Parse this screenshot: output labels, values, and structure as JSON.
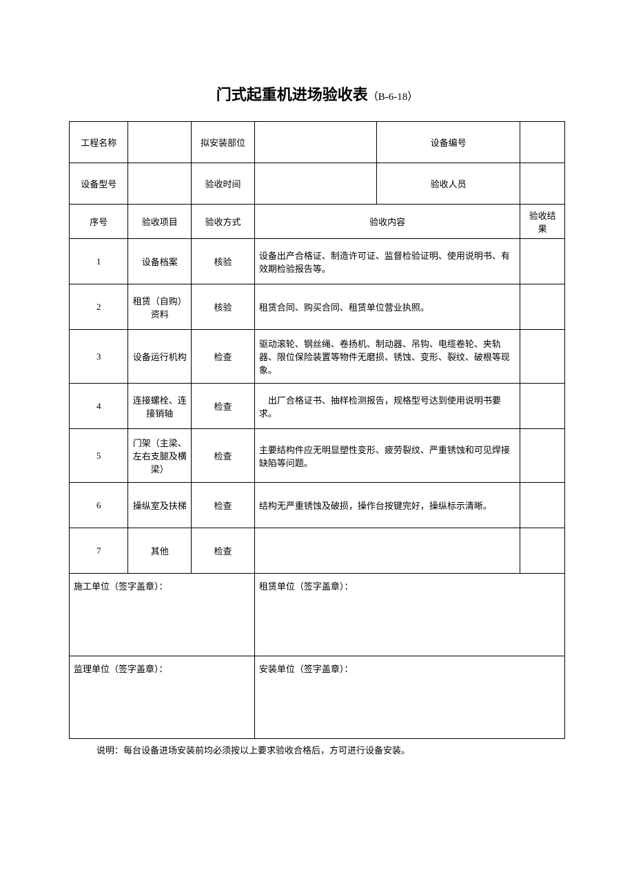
{
  "title": {
    "main": "门式起重机进场验收表",
    "code": "（B-6-18）"
  },
  "header": {
    "row1": {
      "label1": "工程名称",
      "value1": "",
      "label2": "拟安装部位",
      "value2": "",
      "label3": "设备编号",
      "value3": ""
    },
    "row2": {
      "label1": "设备型号",
      "value1": "",
      "label2": "验收时间",
      "value2": "",
      "label3": "验收人员",
      "value3": ""
    }
  },
  "columns": {
    "seq": "序号",
    "item": "验收项目",
    "method": "验收方式",
    "content": "验收内容",
    "result": "验收结果"
  },
  "rows": [
    {
      "seq": "1",
      "item": "设备档案",
      "method": "核验",
      "content": "设备出产合格证、制造许可证、监督检验证明、使用说明书、有效期检验报告等。",
      "result": ""
    },
    {
      "seq": "2",
      "item": "租赁（自购）资料",
      "method": "核验",
      "content": "租赁合同、购买合同、租赁单位营业执照。",
      "result": ""
    },
    {
      "seq": "3",
      "item": "设备运行机构",
      "method": "检查",
      "content": "驱动滚轮、钢丝绳、卷扬机、制动器、吊钩、电缆卷轮、夹轨器、限位保险装置等物件无磨损、锈蚀、变形、裂纹、破根等现象。",
      "result": ""
    },
    {
      "seq": "4",
      "item": "连接螺栓、连接销轴",
      "method": "检查",
      "content": "　出厂合格证书、抽样检测报告，规格型号达到使用说明书要求。",
      "result": ""
    },
    {
      "seq": "5",
      "item": "门架（主梁、左右支腿及横梁）",
      "method": "检查",
      "content": "主要结构件应无明显塑性变形、疲劳裂纹、严重锈蚀和可见焊接缺陷等问题。",
      "result": ""
    },
    {
      "seq": "6",
      "item": "操纵室及扶梯",
      "method": "检查",
      "content": "结构无严重锈蚀及破损，操作台按键完好，操纵标示清晰。",
      "result": ""
    },
    {
      "seq": "7",
      "item": "其他",
      "method": "检查",
      "content": "",
      "result": ""
    }
  ],
  "signatures": {
    "construction": "施工单位（签字盖章）：",
    "lease": "租赁单位（签字盖章）：",
    "supervision": "监理单位（签字盖章）：",
    "installation": "安装单位（签字盖章）："
  },
  "note": "说明：每台设备进场安装前均必须按以上要求验收合格后，方可进行设备安装。"
}
